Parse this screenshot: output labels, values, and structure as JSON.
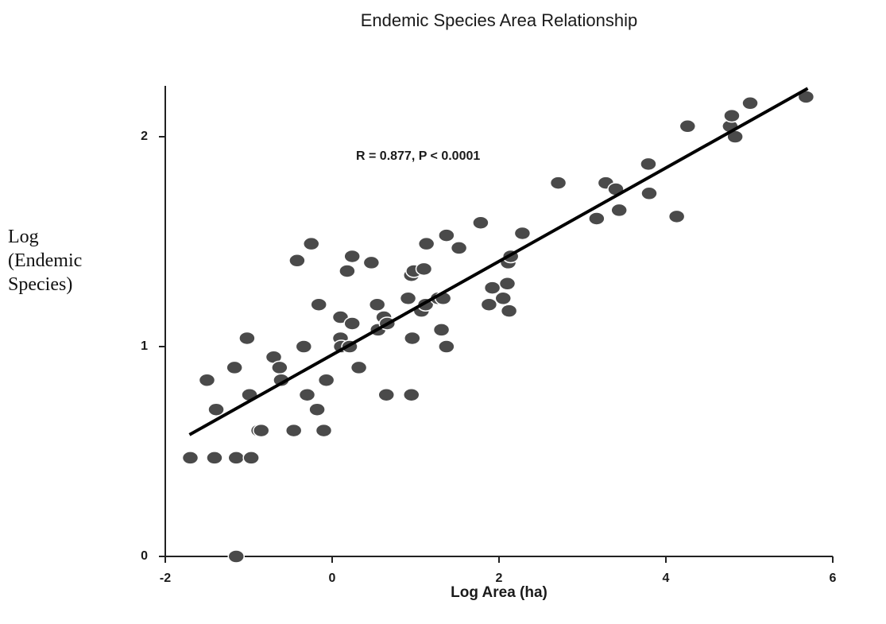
{
  "chart_data": {
    "type": "scatter",
    "title": "Endemic Species Area Relationship",
    "x_label": "Log Area (ha)",
    "y_label": "Log (Endemic Species)",
    "annotation": "R = 0.877, P < 0.0001",
    "xlim": [
      -2,
      6
    ],
    "xticks": [
      -2,
      0,
      2,
      4,
      6
    ],
    "ylim": [
      0,
      2.24
    ],
    "yticks": [
      0,
      1,
      2
    ],
    "color": "#4a4a4a",
    "series": [
      {
        "name": "Endemic species",
        "x": [
          -1.7,
          -1.5,
          -1.39,
          -1.41,
          -1.17,
          -1.15,
          -1.15,
          -1.02,
          -0.99,
          -0.97,
          -0.88,
          -0.85,
          -0.7,
          -0.63,
          -0.61,
          -0.42,
          -0.46,
          -0.34,
          -0.3,
          -0.25,
          -0.18,
          -0.16,
          -0.1,
          -0.07,
          0.1,
          0.1,
          0.11,
          0.21,
          0.18,
          0.24,
          0.24,
          0.32,
          0.47,
          0.54,
          0.55,
          0.62,
          0.66,
          0.65,
          0.91,
          0.95,
          0.98,
          0.96,
          0.95,
          1.07,
          1.1,
          1.12,
          1.13,
          1.27,
          1.31,
          1.33,
          1.37,
          1.37,
          1.52,
          1.78,
          1.88,
          1.92,
          2.05,
          2.1,
          2.11,
          2.14,
          2.12,
          2.28,
          2.71,
          3.17,
          3.28,
          3.4,
          3.44,
          3.79,
          3.8,
          4.13,
          4.26,
          4.77,
          4.79,
          4.83,
          5.01,
          5.68
        ],
        "values": [
          0.47,
          0.84,
          0.7,
          0.47,
          0.9,
          0.47,
          0.0,
          1.04,
          0.77,
          0.47,
          0.6,
          0.6,
          0.95,
          0.9,
          0.84,
          1.41,
          0.6,
          1.0,
          0.77,
          1.49,
          0.7,
          1.2,
          0.6,
          0.84,
          1.14,
          1.04,
          1.0,
          1.0,
          1.36,
          1.43,
          1.11,
          0.9,
          1.4,
          1.2,
          1.08,
          1.14,
          1.11,
          0.77,
          1.23,
          1.34,
          1.36,
          1.04,
          0.77,
          1.17,
          1.37,
          1.2,
          1.49,
          1.23,
          1.08,
          1.23,
          1.53,
          1.0,
          1.47,
          1.59,
          1.2,
          1.28,
          1.23,
          1.3,
          1.4,
          1.43,
          1.17,
          1.54,
          1.78,
          1.61,
          1.78,
          1.75,
          1.65,
          1.87,
          1.73,
          1.62,
          2.05,
          2.05,
          2.1,
          2.0,
          2.16,
          2.19
        ]
      }
    ],
    "fit": {
      "x": [
        -1.71,
        5.7
      ],
      "values": [
        0.58,
        2.23
      ],
      "color": "#000000"
    }
  }
}
